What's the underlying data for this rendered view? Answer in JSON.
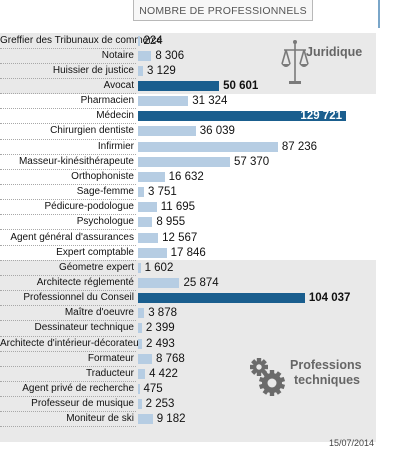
{
  "header": {
    "title": "NOMBRE DE PROFESSIONNELS"
  },
  "footer": {
    "date": "15/07/2014"
  },
  "chart_data": {
    "type": "bar",
    "orientation": "horizontal",
    "xlim": [
      0,
      129721
    ],
    "groups": [
      {
        "name": "Juridique",
        "icon": "scales-of-justice-icon",
        "start": 0,
        "end": 3
      },
      {
        "name": "Professions techniques",
        "icon": "gears-icon",
        "start": 15,
        "end": 26
      }
    ],
    "categories": [
      "Greffier des Tribunaux de commerce",
      "Notaire",
      "Huissier de justice",
      "Avocat",
      "Pharmacien",
      "Médecin",
      "Chirurgien dentiste",
      "Infirmier",
      "Masseur-kinésithérapeute",
      "Orthophoniste",
      "Sage-femme",
      "Pédicure-podologue",
      "Psychologue",
      "Agent général d'assurances",
      "Expert comptable",
      "Géometre expert",
      "Architecte réglementé",
      "Professionnel du Conseil",
      "Maître d'oeuvre",
      "Dessinateur technique",
      "Architecte d'intérieur-décorateur",
      "Formateur",
      "Traducteur",
      "Agent privé de recherche",
      "Professeur de musique",
      "Moniteur de ski"
    ],
    "values": [
      224,
      8306,
      3129,
      50601,
      31324,
      129721,
      36039,
      87236,
      57370,
      16632,
      3751,
      11695,
      8955,
      12567,
      17846,
      1602,
      25874,
      104037,
      3878,
      2399,
      2493,
      8768,
      4422,
      475,
      2253,
      9182
    ],
    "value_labels": [
      "224",
      "8 306",
      "3 129",
      "50 601",
      "31 324",
      "129 721",
      "36 039",
      "87 236",
      "57 370",
      "16 632",
      "3 751",
      "11 695",
      "8 955",
      "12 567",
      "17 846",
      "1 602",
      "25 874",
      "104 037",
      "3 878",
      "2 399",
      "2 493",
      "8 768",
      "4 422",
      "475",
      "2 253",
      "9 182"
    ],
    "highlighted": [
      3,
      5,
      17
    ],
    "colors": {
      "bar": "#b6cde3",
      "highlight": "#1a5e8e",
      "band": "#e9e9e9"
    }
  }
}
